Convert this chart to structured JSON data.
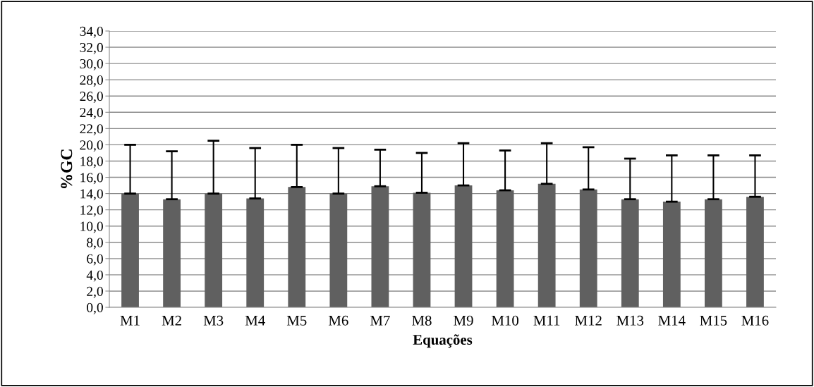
{
  "chart_data": {
    "type": "bar",
    "xlabel": "Equações",
    "ylabel": "%GC",
    "categories": [
      "M1",
      "M2",
      "M3",
      "M4",
      "M5",
      "M6",
      "M7",
      "M8",
      "M9",
      "M10",
      "M11",
      "M12",
      "M13",
      "M14",
      "M15",
      "M16"
    ],
    "values": [
      14.0,
      13.3,
      14.0,
      13.4,
      14.8,
      14.0,
      14.9,
      14.1,
      15.0,
      14.4,
      15.2,
      14.5,
      13.3,
      13.0,
      13.3,
      13.6
    ],
    "errors": [
      [
        14.0,
        20.0
      ],
      [
        13.3,
        19.2
      ],
      [
        14.0,
        20.5
      ],
      [
        13.4,
        19.6
      ],
      [
        14.8,
        20.0
      ],
      [
        14.0,
        19.6
      ],
      [
        14.9,
        19.4
      ],
      [
        14.1,
        19.0
      ],
      [
        15.0,
        20.2
      ],
      [
        14.4,
        19.3
      ],
      [
        15.2,
        20.2
      ],
      [
        14.5,
        19.7
      ],
      [
        13.3,
        18.3
      ],
      [
        13.0,
        18.7
      ],
      [
        13.3,
        18.7
      ],
      [
        13.6,
        18.7
      ]
    ],
    "color": "#606060",
    "ylim": [
      0,
      34
    ],
    "yticks": [
      {
        "value": 0,
        "label": "0,0"
      },
      {
        "value": 2,
        "label": "2,0"
      },
      {
        "value": 4,
        "label": "4,0"
      },
      {
        "value": 6,
        "label": "6,0"
      },
      {
        "value": 8,
        "label": "8,0"
      },
      {
        "value": 10,
        "label": "10,0"
      },
      {
        "value": 12,
        "label": "12,0"
      },
      {
        "value": 14,
        "label": "14,0"
      },
      {
        "value": 16,
        "label": "16,0"
      },
      {
        "value": 18,
        "label": "18,0"
      },
      {
        "value": 20,
        "label": "20,0"
      },
      {
        "value": 22,
        "label": "22,0"
      },
      {
        "value": 24,
        "label": "24,0"
      },
      {
        "value": 26,
        "label": "26,0"
      },
      {
        "value": 28,
        "label": "28,0"
      },
      {
        "value": 30,
        "label": "30,0"
      },
      {
        "value": 32,
        "label": "32,0"
      },
      {
        "value": 34,
        "label": "34,0"
      }
    ],
    "grid": "y"
  }
}
